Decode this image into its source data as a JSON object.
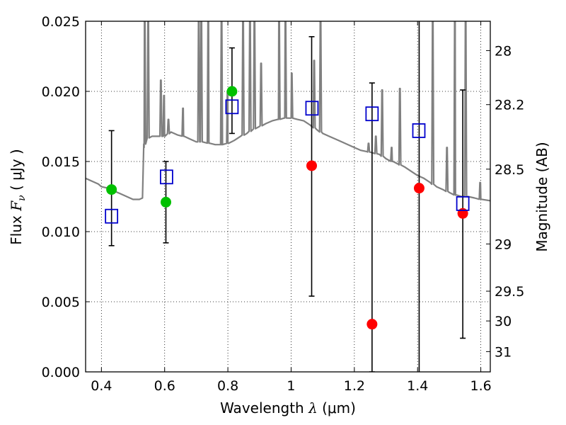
{
  "chart_data": {
    "type": "scatter",
    "title": "",
    "xlabel": {
      "prefix": "Wavelength",
      "symbol": "λ",
      "unit": "(μm)"
    },
    "ylabel": {
      "prefix": "Flux",
      "symbol": "F",
      "sub": "ν",
      "unit": "( μJy )"
    },
    "y2label": "Magnitude (AB)",
    "xlim": [
      0.35,
      1.63
    ],
    "ylim": [
      0.0,
      0.025
    ],
    "grid": true,
    "x_ticks": [
      0.4,
      0.6,
      0.8,
      1.0,
      1.2,
      1.4,
      1.6
    ],
    "x_tick_labels": [
      "0.4",
      "0.6",
      "0.8",
      "1",
      "1.2",
      "1.4",
      "1.6"
    ],
    "y_ticks": [
      0.0,
      0.005,
      0.01,
      0.015,
      0.02,
      0.025
    ],
    "y_tick_labels": [
      "0.000",
      "0.005",
      "0.010",
      "0.015",
      "0.020",
      "0.025"
    ],
    "y2_ticks": [
      {
        "mag": 28,
        "label": "28"
      },
      {
        "mag": 28.2,
        "label": "28.2"
      },
      {
        "mag": 28.5,
        "label": "28.5"
      },
      {
        "mag": 29,
        "label": "29"
      },
      {
        "mag": 29.5,
        "label": "29.5"
      },
      {
        "mag": 30,
        "label": "30"
      },
      {
        "mag": 31,
        "label": "31"
      }
    ],
    "colors": {
      "template": "#808080",
      "green": "#00c000",
      "red": "#ff0000",
      "model": "#0000cc",
      "errorbar": "#000000",
      "vline": "#000000"
    },
    "vline_x": 1.405,
    "template_spectrum": [
      [
        0.35,
        0.0138
      ],
      [
        0.37,
        0.0136
      ],
      [
        0.39,
        0.0134
      ],
      [
        0.4,
        0.0132
      ],
      [
        0.42,
        0.0131
      ],
      [
        0.44,
        0.0129
      ],
      [
        0.46,
        0.0127
      ],
      [
        0.48,
        0.0125
      ],
      [
        0.5,
        0.0123
      ],
      [
        0.52,
        0.0123
      ],
      [
        0.53,
        0.0124
      ],
      [
        0.535,
        0.016
      ],
      [
        0.54,
        0.0166
      ],
      [
        0.56,
        0.0168
      ],
      [
        0.58,
        0.0168
      ],
      [
        0.6,
        0.0168
      ],
      [
        0.62,
        0.0171
      ],
      [
        0.64,
        0.0169
      ],
      [
        0.66,
        0.0168
      ],
      [
        0.68,
        0.0166
      ],
      [
        0.7,
        0.0164
      ],
      [
        0.72,
        0.0164
      ],
      [
        0.74,
        0.0163
      ],
      [
        0.76,
        0.0162
      ],
      [
        0.78,
        0.0162
      ],
      [
        0.8,
        0.0163
      ],
      [
        0.82,
        0.0165
      ],
      [
        0.84,
        0.0168
      ],
      [
        0.86,
        0.017
      ],
      [
        0.88,
        0.0173
      ],
      [
        0.9,
        0.0175
      ],
      [
        0.92,
        0.0177
      ],
      [
        0.94,
        0.0179
      ],
      [
        0.96,
        0.018
      ],
      [
        0.98,
        0.0181
      ],
      [
        1.0,
        0.0181
      ],
      [
        1.02,
        0.018
      ],
      [
        1.04,
        0.0179
      ],
      [
        1.06,
        0.0176
      ],
      [
        1.08,
        0.0173
      ],
      [
        1.1,
        0.017
      ],
      [
        1.12,
        0.0168
      ],
      [
        1.14,
        0.0166
      ],
      [
        1.16,
        0.0164
      ],
      [
        1.18,
        0.0162
      ],
      [
        1.2,
        0.016
      ],
      [
        1.22,
        0.0158
      ],
      [
        1.24,
        0.0157
      ],
      [
        1.26,
        0.0156
      ],
      [
        1.28,
        0.0155
      ],
      [
        1.3,
        0.0152
      ],
      [
        1.32,
        0.015
      ],
      [
        1.34,
        0.0148
      ],
      [
        1.36,
        0.0146
      ],
      [
        1.38,
        0.0143
      ],
      [
        1.4,
        0.014
      ],
      [
        1.42,
        0.0138
      ],
      [
        1.44,
        0.0135
      ],
      [
        1.46,
        0.0132
      ],
      [
        1.48,
        0.013
      ],
      [
        1.5,
        0.0128
      ],
      [
        1.52,
        0.0126
      ],
      [
        1.54,
        0.0125
      ],
      [
        1.56,
        0.0125
      ],
      [
        1.58,
        0.0124
      ],
      [
        1.6,
        0.0123
      ],
      [
        1.63,
        0.0122
      ]
    ],
    "emission_lines": [
      {
        "x": 0.537,
        "peak": 0.0255
      },
      {
        "x": 0.548,
        "peak": 0.0255
      },
      {
        "x": 0.588,
        "peak": 0.0208
      },
      {
        "x": 0.598,
        "peak": 0.0197
      },
      {
        "x": 0.612,
        "peak": 0.018
      },
      {
        "x": 0.658,
        "peak": 0.0188
      },
      {
        "x": 0.708,
        "peak": 0.0255
      },
      {
        "x": 0.716,
        "peak": 0.0255
      },
      {
        "x": 0.738,
        "peak": 0.0255
      },
      {
        "x": 0.78,
        "peak": 0.0255
      },
      {
        "x": 0.799,
        "peak": 0.02
      },
      {
        "x": 0.848,
        "peak": 0.0255
      },
      {
        "x": 0.87,
        "peak": 0.0255
      },
      {
        "x": 0.884,
        "peak": 0.0255
      },
      {
        "x": 0.905,
        "peak": 0.022
      },
      {
        "x": 0.962,
        "peak": 0.0255
      },
      {
        "x": 0.982,
        "peak": 0.0255
      },
      {
        "x": 1.002,
        "peak": 0.0213
      },
      {
        "x": 1.073,
        "peak": 0.0222
      },
      {
        "x": 1.093,
        "peak": 0.0255
      },
      {
        "x": 1.245,
        "peak": 0.0163
      },
      {
        "x": 1.268,
        "peak": 0.0168
      },
      {
        "x": 1.288,
        "peak": 0.0201
      },
      {
        "x": 1.318,
        "peak": 0.016
      },
      {
        "x": 1.344,
        "peak": 0.0202
      },
      {
        "x": 1.448,
        "peak": 0.0255
      },
      {
        "x": 1.493,
        "peak": 0.016
      },
      {
        "x": 1.518,
        "peak": 0.0255
      },
      {
        "x": 1.552,
        "peak": 0.0255
      },
      {
        "x": 1.598,
        "peak": 0.0135
      }
    ],
    "series": [
      {
        "marker": "circle",
        "color": "green",
        "points": [
          {
            "x": 0.432,
            "y": 0.013,
            "err_lo": 0.009,
            "err_hi": 0.0172
          },
          {
            "x": 0.604,
            "y": 0.0121,
            "err_lo": 0.0092,
            "err_hi": 0.015
          },
          {
            "x": 0.813,
            "y": 0.02,
            "err_lo": 0.017,
            "err_hi": 0.0231
          }
        ]
      },
      {
        "marker": "circle",
        "color": "red",
        "points": [
          {
            "x": 1.065,
            "y": 0.0147,
            "err_lo": 0.0054,
            "err_hi": 0.0239
          },
          {
            "x": 1.256,
            "y": 0.0034,
            "err_lo": 0.0,
            "err_hi": 0.0206
          },
          {
            "x": 1.405,
            "y": 0.0131,
            "err_lo": null,
            "err_hi": null
          },
          {
            "x": 1.543,
            "y": 0.0113,
            "err_lo": 0.0024,
            "err_hi": 0.0201
          }
        ]
      },
      {
        "marker": "open-square",
        "color": "model",
        "points": [
          {
            "x": 0.432,
            "y": 0.0111
          },
          {
            "x": 0.606,
            "y": 0.0139
          },
          {
            "x": 0.813,
            "y": 0.0189
          },
          {
            "x": 1.066,
            "y": 0.0188
          },
          {
            "x": 1.256,
            "y": 0.0184
          },
          {
            "x": 1.404,
            "y": 0.0172
          },
          {
            "x": 1.543,
            "y": 0.012
          }
        ]
      }
    ]
  }
}
